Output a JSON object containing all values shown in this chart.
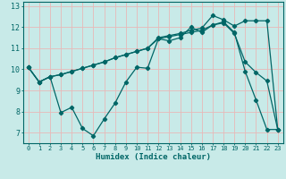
{
  "xlabel": "Humidex (Indice chaleur)",
  "bg_color": "#c8eae8",
  "grid_color": "#e8b8b8",
  "line_color": "#006666",
  "spine_color": "#006666",
  "xlim": [
    -0.5,
    23.5
  ],
  "ylim": [
    6.5,
    13.2
  ],
  "xticks": [
    0,
    1,
    2,
    3,
    4,
    5,
    6,
    7,
    8,
    9,
    10,
    11,
    12,
    13,
    14,
    15,
    16,
    17,
    18,
    19,
    20,
    21,
    22,
    23
  ],
  "yticks": [
    7,
    8,
    9,
    10,
    11,
    12,
    13
  ],
  "tick_fontsize": 5.0,
  "xlabel_fontsize": 6.5,
  "line1_x": [
    0,
    1,
    2,
    3,
    4,
    5,
    6,
    7,
    8,
    9,
    10,
    11,
    12,
    13,
    14,
    15,
    16,
    17,
    18,
    19,
    20,
    21,
    22,
    23
  ],
  "line1_y": [
    10.1,
    9.4,
    9.65,
    7.95,
    8.2,
    7.2,
    6.85,
    7.65,
    8.4,
    9.4,
    10.1,
    10.05,
    11.45,
    11.35,
    11.5,
    12.0,
    11.75,
    12.1,
    12.25,
    11.75,
    9.9,
    8.55,
    7.15,
    7.15
  ],
  "line2_x": [
    0,
    1,
    2,
    3,
    4,
    5,
    6,
    7,
    8,
    9,
    10,
    11,
    12,
    13,
    14,
    15,
    16,
    17,
    18,
    19,
    20,
    21,
    22,
    23
  ],
  "line2_y": [
    10.1,
    9.4,
    9.65,
    9.75,
    9.9,
    10.05,
    10.2,
    10.35,
    10.55,
    10.7,
    10.85,
    11.0,
    11.45,
    11.55,
    11.65,
    11.75,
    11.85,
    12.1,
    12.2,
    11.7,
    10.35,
    9.85,
    9.45,
    7.15
  ],
  "line3_x": [
    0,
    1,
    2,
    3,
    4,
    5,
    6,
    7,
    8,
    9,
    10,
    11,
    12,
    13,
    14,
    15,
    16,
    17,
    18,
    19,
    20,
    21,
    22,
    23
  ],
  "line3_y": [
    10.1,
    9.4,
    9.65,
    9.75,
    9.9,
    10.05,
    10.2,
    10.35,
    10.55,
    10.7,
    10.85,
    11.0,
    11.5,
    11.6,
    11.7,
    11.85,
    11.95,
    12.55,
    12.35,
    12.05,
    12.3,
    12.3,
    12.3,
    7.15
  ]
}
